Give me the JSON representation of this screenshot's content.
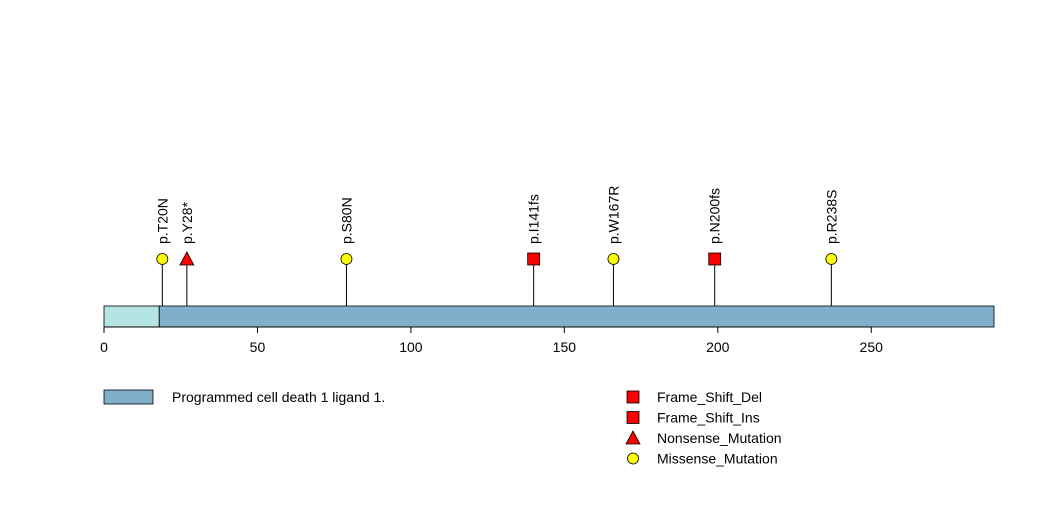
{
  "chart_data": {
    "type": "lollipop",
    "xlim": [
      0,
      290
    ],
    "ticks": [
      0,
      50,
      100,
      150,
      200,
      250
    ],
    "protein_length": 290,
    "domains": [
      {
        "name": "Programmed cell death 1 ligand 1.",
        "start": 18,
        "end": 290,
        "color": "#7fafc9"
      }
    ],
    "signal_region": {
      "start": 0,
      "end": 18,
      "color": "#b4e4e4"
    },
    "mutations": [
      {
        "label": "p.T20N",
        "position": 19,
        "type": "Missense_Mutation"
      },
      {
        "label": "p.Y28*",
        "position": 27,
        "type": "Nonsense_Mutation"
      },
      {
        "label": "p.S80N",
        "position": 79,
        "type": "Missense_Mutation"
      },
      {
        "label": "p.I141fs",
        "position": 140,
        "type": "Frame_Shift_Del"
      },
      {
        "label": "p.W167R",
        "position": 166,
        "type": "Missense_Mutation"
      },
      {
        "label": "p.N200fs",
        "position": 199,
        "type": "Frame_Shift_Ins"
      },
      {
        "label": "p.R238S",
        "position": 237,
        "type": "Missense_Mutation"
      }
    ],
    "legend_types": [
      {
        "label": "Frame_Shift_Del",
        "shape": "square",
        "color": "#ff0000"
      },
      {
        "label": "Frame_Shift_Ins",
        "shape": "square",
        "color": "#ff0000"
      },
      {
        "label": "Nonsense_Mutation",
        "shape": "triangle",
        "color": "#ff0000"
      },
      {
        "label": "Missense_Mutation",
        "shape": "circle",
        "color": "#ffff00"
      }
    ]
  }
}
